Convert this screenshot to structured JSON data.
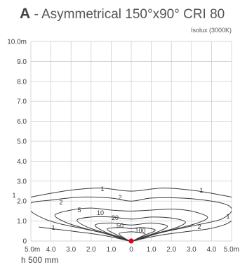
{
  "header": {
    "letter": "A",
    "title": " - Asymmetrical 150°x90° CRI 80",
    "subtitle": "Isolux (3000K)"
  },
  "footer": {
    "mounting_height": "h 500 mm"
  },
  "colors": {
    "source_point": "#e0001b",
    "line": "#3a3a3a",
    "grid": "#c8c8c8"
  },
  "chart_data": {
    "type": "contour",
    "title": "A - Asymmetrical 150°x90° CRI 80",
    "subtitle": "Isolux (3000K)",
    "x_tick_labels": [
      "5.0m",
      "4.0",
      "3.0",
      "2.0",
      "1.0",
      "0",
      "1.0",
      "2.0",
      "3.0",
      "4.0",
      "5.0m"
    ],
    "y_tick_labels": [
      "0",
      "1.0",
      "2.0",
      "3.0",
      "4.0",
      "5.0",
      "6.0",
      "7.0",
      "8.0",
      "9.0",
      "10.0m"
    ],
    "xlim": [
      -5,
      5
    ],
    "ylim": [
      0,
      10
    ],
    "grid": true,
    "source": {
      "x": 0,
      "y": 0
    },
    "contours": [
      {
        "level": "1",
        "points": [
          [
            -5,
            2.2
          ],
          [
            -4.5,
            2.3
          ],
          [
            -3,
            2.55
          ],
          [
            -1.5,
            2.65
          ],
          [
            0,
            2.5
          ],
          [
            1.5,
            2.65
          ],
          [
            3,
            2.55
          ],
          [
            4.5,
            2.3
          ],
          [
            5,
            2.2
          ]
        ]
      },
      {
        "level": "1",
        "points": [
          [
            -4.6,
            0.7
          ],
          [
            -3.8,
            0.6
          ],
          [
            -2.6,
            0.45
          ],
          [
            -1.5,
            0.3
          ],
          [
            -0.6,
            0.12
          ],
          [
            -0.2,
            0.02
          ],
          [
            0,
            0
          ],
          [
            0.2,
            0.02
          ],
          [
            0.6,
            0.12
          ],
          [
            1.5,
            0.3
          ],
          [
            2.6,
            0.45
          ],
          [
            3.8,
            0.6
          ],
          [
            4.6,
            0.8
          ],
          [
            5,
            1
          ]
        ]
      },
      {
        "level": "2",
        "points": [
          [
            -5,
            1.9
          ],
          [
            -4,
            2.05
          ],
          [
            -2.5,
            2.2
          ],
          [
            -1,
            2.15
          ],
          [
            0,
            2
          ],
          [
            1,
            2.15
          ],
          [
            2.5,
            2.15
          ],
          [
            4,
            2
          ],
          [
            4.8,
            1.8
          ],
          [
            5,
            1.5
          ],
          [
            4.5,
            1.1
          ],
          [
            3.5,
            0.85
          ],
          [
            2.3,
            0.6
          ],
          [
            1.2,
            0.35
          ],
          [
            0.4,
            0.1
          ],
          [
            0,
            0
          ],
          [
            -0.4,
            0.1
          ],
          [
            -1.2,
            0.35
          ],
          [
            -2.3,
            0.6
          ],
          [
            -3.5,
            0.85
          ],
          [
            -4.3,
            1.1
          ],
          [
            -5,
            1.5
          ]
        ]
      },
      {
        "level": "5",
        "points": [
          [
            -3.8,
            1.3
          ],
          [
            -3,
            1.55
          ],
          [
            -2,
            1.65
          ],
          [
            -1,
            1.55
          ],
          [
            0,
            1.5
          ],
          [
            1,
            1.55
          ],
          [
            2,
            1.6
          ],
          [
            3,
            1.5
          ],
          [
            3.8,
            1.2
          ],
          [
            3.3,
            0.9
          ],
          [
            2.4,
            0.65
          ],
          [
            1.4,
            0.4
          ],
          [
            0.5,
            0.12
          ],
          [
            0,
            0
          ],
          [
            -0.5,
            0.12
          ],
          [
            -1.4,
            0.4
          ],
          [
            -2.4,
            0.65
          ],
          [
            -3.3,
            0.95
          ]
        ]
      },
      {
        "level": "10",
        "points": [
          [
            -2.7,
            1.05
          ],
          [
            -2,
            1.2
          ],
          [
            -1,
            1.2
          ],
          [
            0,
            1.1
          ],
          [
            1,
            1.2
          ],
          [
            2,
            1.15
          ],
          [
            2.7,
            0.95
          ],
          [
            2.2,
            0.65
          ],
          [
            1.3,
            0.4
          ],
          [
            0.5,
            0.14
          ],
          [
            0,
            0
          ],
          [
            -0.5,
            0.14
          ],
          [
            -1.3,
            0.4
          ],
          [
            -2.2,
            0.7
          ]
        ]
      },
      {
        "level": "20",
        "points": [
          [
            -1.8,
            0.8
          ],
          [
            -1,
            0.9
          ],
          [
            0,
            0.8
          ],
          [
            1,
            0.9
          ],
          [
            1.8,
            0.75
          ],
          [
            1.3,
            0.45
          ],
          [
            0.6,
            0.2
          ],
          [
            0,
            0
          ],
          [
            -0.6,
            0.2
          ],
          [
            -1.3,
            0.45
          ]
        ]
      },
      {
        "level": "50",
        "points": [
          [
            -1.2,
            0.6
          ],
          [
            -0.5,
            0.68
          ],
          [
            0,
            0.62
          ],
          [
            0.5,
            0.68
          ],
          [
            1.2,
            0.55
          ],
          [
            0.7,
            0.3
          ],
          [
            0.3,
            0.1
          ],
          [
            0,
            0
          ],
          [
            -0.3,
            0.1
          ],
          [
            -0.7,
            0.3
          ]
        ]
      },
      {
        "level": "100",
        "points": [
          [
            -0.6,
            0.38
          ],
          [
            -0.2,
            0.45
          ],
          [
            0.2,
            0.45
          ],
          [
            0.7,
            0.35
          ],
          [
            0.35,
            0.15
          ],
          [
            0,
            0
          ],
          [
            -0.35,
            0.15
          ]
        ]
      }
    ]
  }
}
